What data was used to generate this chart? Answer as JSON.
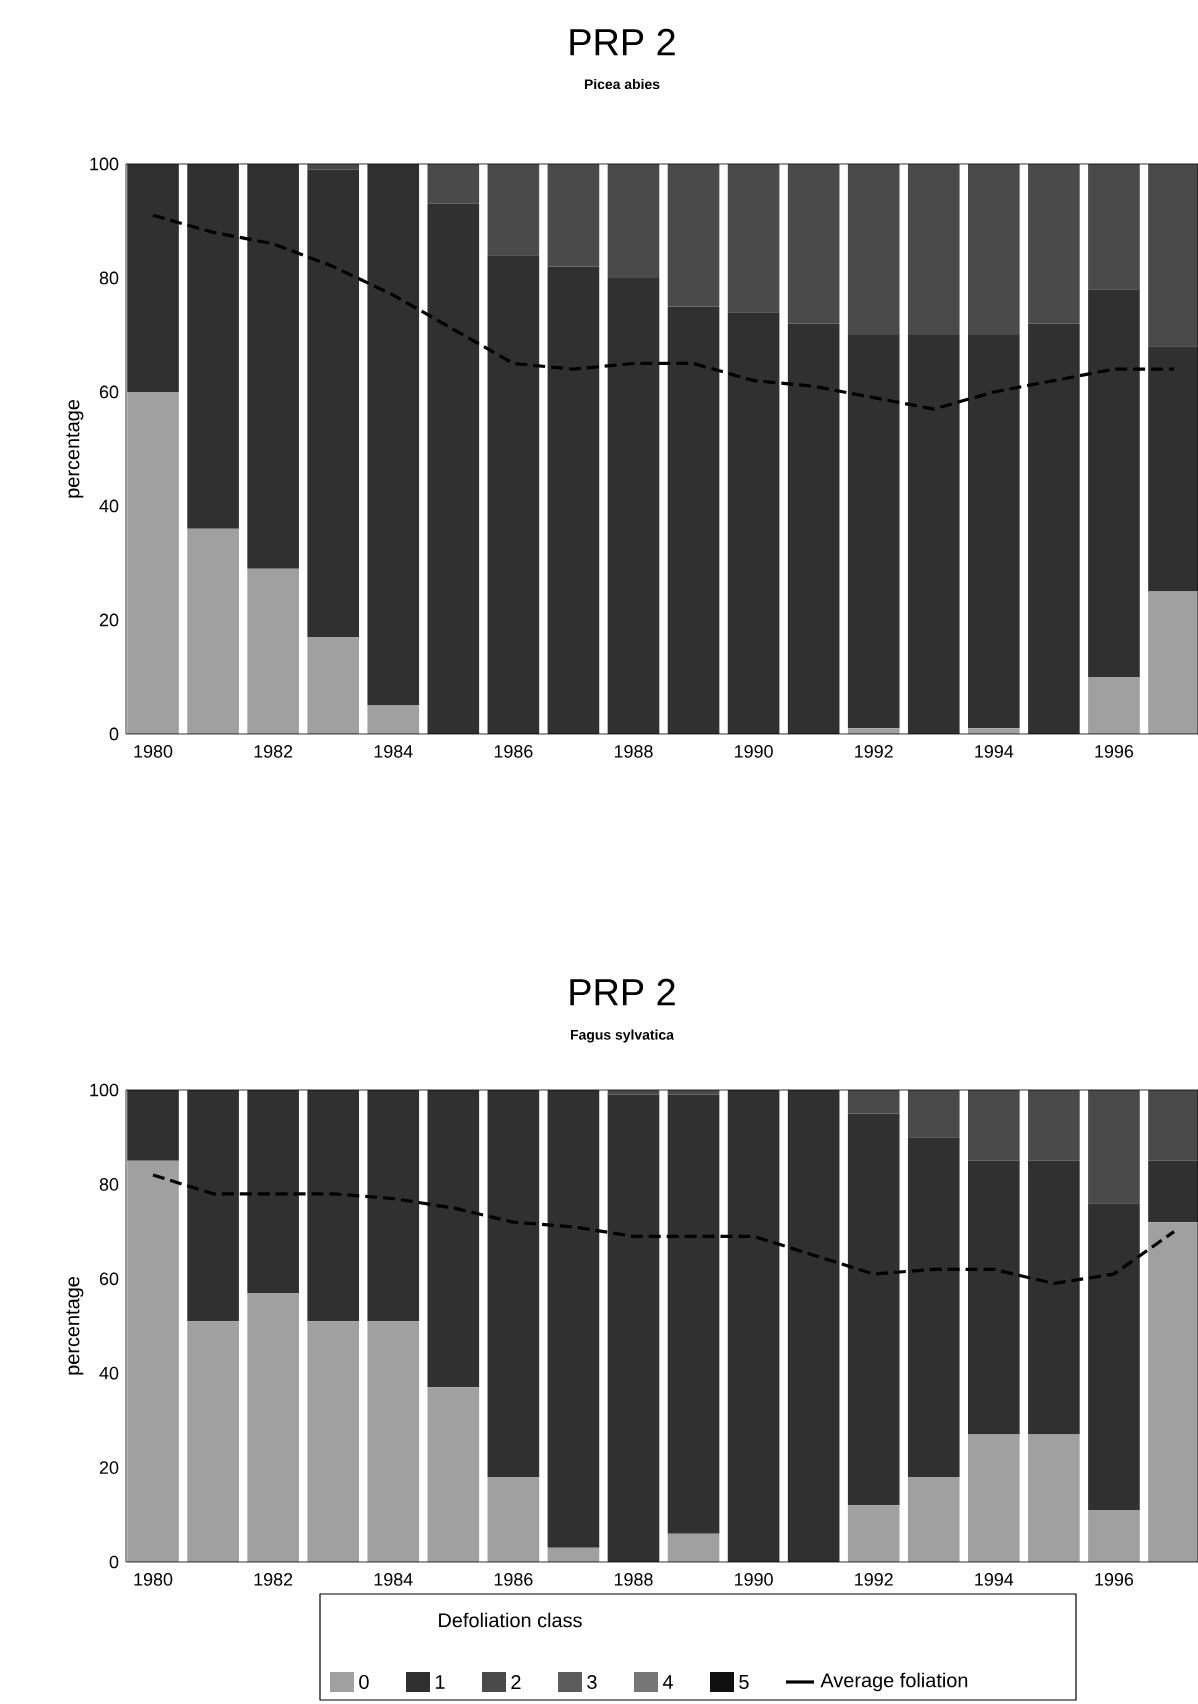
{
  "chart_data": [
    {
      "type": "bar",
      "title": "PRP 2",
      "subtitle": "Picea abies",
      "ylabel": "percentage",
      "stacked": true,
      "x": [
        1980,
        1981,
        1982,
        1983,
        1984,
        1985,
        1986,
        1987,
        1988,
        1989,
        1990,
        1991,
        1992,
        1993,
        1994,
        1995,
        1996,
        1997
      ],
      "xlim": [
        1979.55,
        1997.4
      ],
      "xticks": [
        1980,
        1982,
        1984,
        1986,
        1988,
        1990,
        1992,
        1994,
        1996
      ],
      "ylim": [
        0,
        100
      ],
      "yticks": [
        0,
        20,
        40,
        60,
        80,
        100
      ],
      "series": [
        {
          "color": "#a0a0a0",
          "values": [
            60,
            36,
            29,
            17,
            5,
            0,
            0,
            0,
            0,
            0,
            0,
            0,
            1,
            0,
            1,
            0,
            10,
            25
          ]
        },
        {
          "color": "#303030",
          "values": [
            40,
            64,
            71,
            82,
            95,
            93,
            84,
            82,
            80,
            75,
            74,
            72,
            69,
            70,
            69,
            72,
            68,
            43
          ]
        },
        {
          "color": "#4a4a4a",
          "values": [
            0,
            0,
            0,
            1,
            0,
            7,
            16,
            18,
            20,
            25,
            26,
            28,
            30,
            30,
            30,
            28,
            22,
            32
          ]
        },
        {
          "color": "#5c5c5c",
          "values": [
            0,
            0,
            0,
            0,
            0,
            0,
            0,
            0,
            0,
            0,
            0,
            0,
            0,
            0,
            0,
            0,
            0,
            0
          ]
        },
        {
          "color": "#767676",
          "values": [
            0,
            0,
            0,
            0,
            0,
            0,
            0,
            0,
            0,
            0,
            0,
            0,
            0,
            0,
            0,
            0,
            0,
            0
          ]
        },
        {
          "color": "#101010",
          "values": [
            0,
            0,
            0,
            0,
            0,
            0,
            0,
            0,
            0,
            0,
            0,
            0,
            0,
            0,
            0,
            0,
            0,
            0
          ]
        },
        {
          "type": "line",
          "color": "#000000",
          "line_style": "dashed",
          "values": [
            91,
            88,
            86,
            82,
            77,
            71,
            65,
            64,
            65,
            65,
            62,
            61,
            59,
            57,
            60,
            62,
            64,
            64
          ]
        }
      ]
    },
    {
      "type": "bar",
      "title": "PRP 2",
      "subtitle": "Fagus sylvatica",
      "ylabel": "percentage",
      "stacked": true,
      "legend": "bottom",
      "legend_title": "Defoliation class",
      "x": [
        1980,
        1981,
        1982,
        1983,
        1984,
        1985,
        1986,
        1987,
        1988,
        1989,
        1990,
        1991,
        1992,
        1993,
        1994,
        1995,
        1996,
        1997
      ],
      "xlim": [
        1979.55,
        1997.4
      ],
      "xticks": [
        1980,
        1982,
        1984,
        1986,
        1988,
        1990,
        1992,
        1994,
        1996
      ],
      "ylim": [
        0,
        100
      ],
      "yticks": [
        0,
        20,
        40,
        60,
        80,
        100
      ],
      "series": [
        {
          "name": "0",
          "color": "#a0a0a0",
          "values": [
            85,
            51,
            57,
            51,
            51,
            37,
            18,
            3,
            0,
            6,
            0,
            0,
            12,
            18,
            27,
            27,
            11,
            72
          ]
        },
        {
          "name": "1",
          "color": "#303030",
          "values": [
            15,
            49,
            43,
            49,
            49,
            63,
            82,
            97,
            99,
            93,
            100,
            100,
            83,
            72,
            58,
            58,
            65,
            13
          ]
        },
        {
          "name": "2",
          "color": "#4a4a4a",
          "values": [
            0,
            0,
            0,
            0,
            0,
            0,
            0,
            0,
            1,
            1,
            0,
            0,
            5,
            10,
            15,
            15,
            24,
            15
          ]
        },
        {
          "name": "3",
          "color": "#5c5c5c",
          "values": [
            0,
            0,
            0,
            0,
            0,
            0,
            0,
            0,
            0,
            0,
            0,
            0,
            0,
            0,
            0,
            0,
            0,
            0
          ]
        },
        {
          "name": "4",
          "color": "#767676",
          "values": [
            0,
            0,
            0,
            0,
            0,
            0,
            0,
            0,
            0,
            0,
            0,
            0,
            0,
            0,
            0,
            0,
            0,
            0
          ]
        },
        {
          "name": "5",
          "color": "#101010",
          "values": [
            0,
            0,
            0,
            0,
            0,
            0,
            0,
            0,
            0,
            0,
            0,
            0,
            0,
            0,
            0,
            0,
            0,
            0
          ]
        },
        {
          "name": "Average foliation",
          "type": "line",
          "color": "#000000",
          "line_style": "dashed",
          "values": [
            82,
            78,
            78,
            78,
            77,
            75,
            72,
            71,
            69,
            69,
            69,
            65,
            61,
            62,
            62,
            59,
            61,
            70
          ]
        }
      ]
    }
  ]
}
